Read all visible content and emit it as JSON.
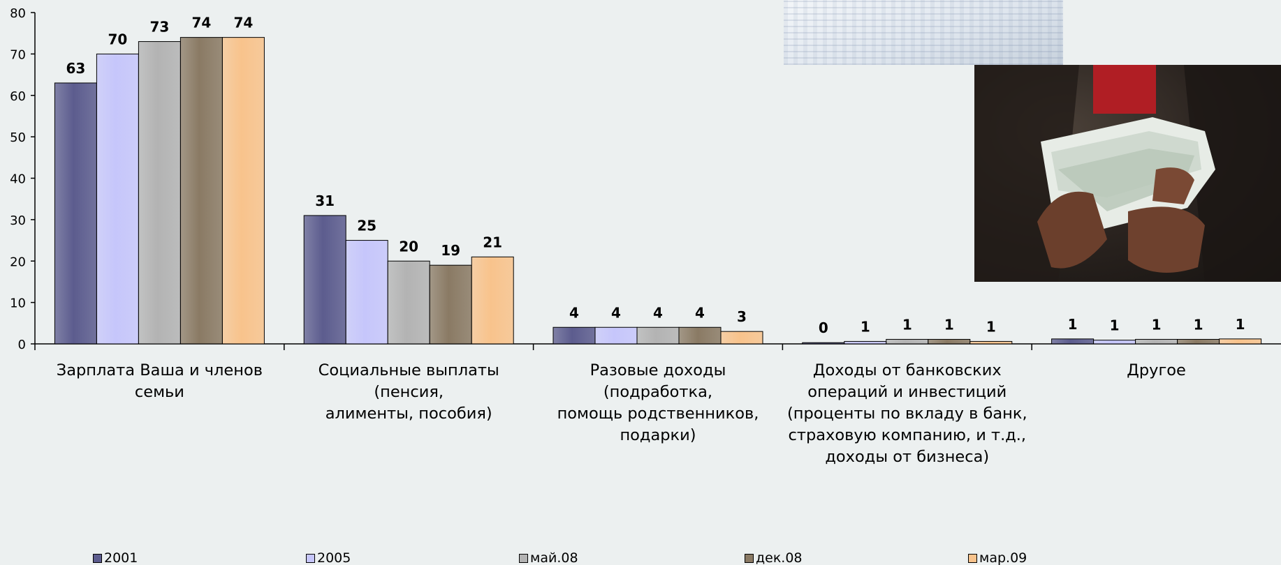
{
  "chart_data": {
    "type": "bar",
    "title": "",
    "xlabel": "",
    "ylabel": "",
    "ylim": [
      0,
      80
    ],
    "yticks": [
      0,
      10,
      20,
      30,
      40,
      50,
      60,
      70,
      80
    ],
    "grid": false,
    "legend_position": "bottom",
    "categories": [
      "Зарплата Ваша и членов семьи",
      "Социальные выплаты (пенсия, алименты, пособия)",
      "Разовые доходы (подработка, помощь родственников, подарки)",
      "Доходы от банковских операций и инвестиций (проценты по вкладу в банк, страховую компанию, и т.д., доходы от бизнеса)",
      "Другое"
    ],
    "category_lines": [
      [
        "Зарплата Ваша и членов семьи"
      ],
      [
        "Социальные выплаты (пенсия,",
        "алименты, пособия)"
      ],
      [
        "Разовые доходы (подработка,",
        "помощь родственников,",
        "подарки)"
      ],
      [
        "Доходы от банковских",
        "операций и инвестиций",
        "(проценты по вкладу в банк,",
        "страховую компанию, и т.д.,",
        "доходы от бизнеса)"
      ],
      [
        "Другое"
      ]
    ],
    "series": [
      {
        "name": "2001",
        "color": "#5c5c8e",
        "values": [
          63,
          31,
          4,
          0.3,
          1.2
        ],
        "labels": [
          "63",
          "31",
          "4",
          "0",
          "1"
        ]
      },
      {
        "name": "2005",
        "color": "#c6c6fb",
        "values": [
          70,
          25,
          4,
          0.6,
          0.9
        ],
        "labels": [
          "70",
          "25",
          "4",
          "1",
          "1"
        ]
      },
      {
        "name": "май.08",
        "color": "#b3b3b3",
        "values": [
          73,
          20,
          4,
          1.1,
          1.1
        ],
        "labels": [
          "73",
          "20",
          "4",
          "1",
          "1"
        ]
      },
      {
        "name": "дек.08",
        "color": "#8a7a64",
        "values": [
          74,
          19,
          4,
          1.1,
          1.1
        ],
        "labels": [
          "74",
          "19",
          "4",
          "1",
          "1"
        ]
      },
      {
        "name": "мар.09",
        "color": "#f8c38c",
        "values": [
          74,
          21,
          3,
          0.6,
          1.2
        ],
        "labels": [
          "74",
          "21",
          "3",
          "1",
          "1"
        ]
      }
    ]
  }
}
